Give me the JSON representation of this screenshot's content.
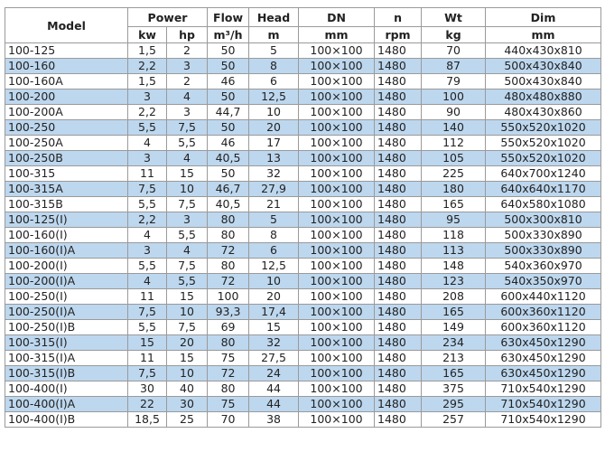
{
  "headers": {
    "model": "Model",
    "power": "Power",
    "flow": "Flow",
    "head": "Head",
    "dn": "DN",
    "n": "n",
    "wt": "Wt",
    "dim": "Dim",
    "kw": "kw",
    "hp": "hp",
    "flow_unit": "m³/h",
    "head_unit": "m",
    "dn_unit": "mm",
    "n_unit": "rpm",
    "wt_unit": "kg",
    "dim_unit": "mm"
  },
  "row_shade_color": "#bdd7ee",
  "rows": [
    [
      "100-125",
      "1,5",
      "2",
      "50",
      "5",
      "100×100",
      "1480",
      "70",
      "440x430x810"
    ],
    [
      "100-160",
      "2,2",
      "3",
      "50",
      "8",
      "100×100",
      "1480",
      "87",
      "500x430x840"
    ],
    [
      "100-160A",
      "1,5",
      "2",
      "46",
      "6",
      "100×100",
      "1480",
      "79",
      "500x430x840"
    ],
    [
      "100-200",
      "3",
      "4",
      "50",
      "12,5",
      "100×100",
      "1480",
      "100",
      "480x480x880"
    ],
    [
      "100-200A",
      "2,2",
      "3",
      "44,7",
      "10",
      "100×100",
      "1480",
      "90",
      "480x430x860"
    ],
    [
      "100-250",
      "5,5",
      "7,5",
      "50",
      "20",
      "100×100",
      "1480",
      "140",
      "550x520x1020"
    ],
    [
      "100-250A",
      "4",
      "5,5",
      "46",
      "17",
      "100×100",
      "1480",
      "112",
      "550x520x1020"
    ],
    [
      "100-250B",
      "3",
      "4",
      "40,5",
      "13",
      "100×100",
      "1480",
      "105",
      "550x520x1020"
    ],
    [
      "100-315",
      "11",
      "15",
      "50",
      "32",
      "100×100",
      "1480",
      "225",
      "640x700x1240"
    ],
    [
      "100-315A",
      "7,5",
      "10",
      "46,7",
      "27,9",
      "100×100",
      "1480",
      "180",
      "640x640x1170"
    ],
    [
      "100-315B",
      "5,5",
      "7,5",
      "40,5",
      "21",
      "100×100",
      "1480",
      "165",
      "640x580x1080"
    ],
    [
      "100-125(I)",
      "2,2",
      "3",
      "80",
      "5",
      "100×100",
      "1480",
      "95",
      "500x300x810"
    ],
    [
      "100-160(I)",
      "4",
      "5,5",
      "80",
      "8",
      "100×100",
      "1480",
      "118",
      "500x330x890"
    ],
    [
      "100-160(I)A",
      "3",
      "4",
      "72",
      "6",
      "100×100",
      "1480",
      "113",
      "500x330x890"
    ],
    [
      "100-200(I)",
      "5,5",
      "7,5",
      "80",
      "12,5",
      "100×100",
      "1480",
      "148",
      "540x360x970"
    ],
    [
      "100-200(I)A",
      "4",
      "5,5",
      "72",
      "10",
      "100×100",
      "1480",
      "123",
      "540x350x970"
    ],
    [
      "100-250(I)",
      "11",
      "15",
      "100",
      "20",
      "100×100",
      "1480",
      "208",
      "600x440x1120"
    ],
    [
      "100-250(I)A",
      "7,5",
      "10",
      "93,3",
      "17,4",
      "100×100",
      "1480",
      "165",
      "600x360x1120"
    ],
    [
      "100-250(I)B",
      "5,5",
      "7,5",
      "69",
      "15",
      "100×100",
      "1480",
      "149",
      "600x360x1120"
    ],
    [
      "100-315(I)",
      "15",
      "20",
      "80",
      "32",
      "100×100",
      "1480",
      "234",
      "630x450x1290"
    ],
    [
      "100-315(I)A",
      "11",
      "15",
      "75",
      "27,5",
      "100×100",
      "1480",
      "213",
      "630x450x1290"
    ],
    [
      "100-315(I)B",
      "7,5",
      "10",
      "72",
      "24",
      "100×100",
      "1480",
      "165",
      "630x450x1290"
    ],
    [
      "100-400(I)",
      "30",
      "40",
      "80",
      "44",
      "100×100",
      "1480",
      "375",
      "710x540x1290"
    ],
    [
      "100-400(I)A",
      "22",
      "30",
      "75",
      "44",
      "100×100",
      "1480",
      "295",
      "710x540x1290"
    ],
    [
      "100-400(I)B",
      "18,5",
      "25",
      "70",
      "38",
      "100×100",
      "1480",
      "257",
      "710x540x1290"
    ]
  ]
}
